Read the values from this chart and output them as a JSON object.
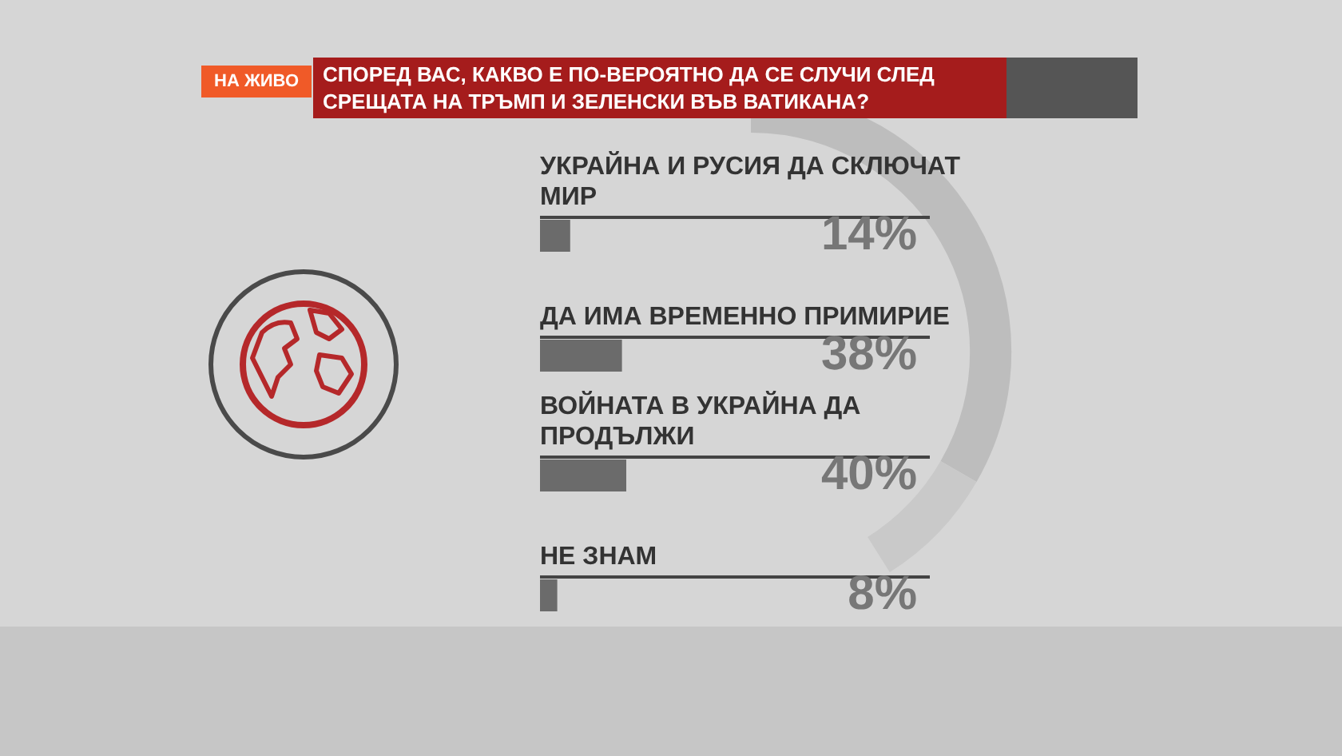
{
  "chart_data": {
    "type": "bar",
    "orientation": "horizontal",
    "title": "СПОРЕД ВАС, КАКВО Е ПО-ВЕРОЯТНО ДА СЕ СЛУЧИ СЛЕД СРЕЩАТА НА ТРЪМП И ЗЕЛЕНСКИ ВЪВ ВАТИКАНА?",
    "annotations": [
      "НА ЖИВО"
    ],
    "categories": [
      "УКРАЙНА И РУСИЯ ДА СКЛЮЧАТ МИР",
      "ДА ИМА ВРЕМЕННО ПРИМИРИЕ",
      "ВОЙНАТА В УКРАЙНА ДА ПРОДЪЛЖИ",
      "НЕ ЗНАМ"
    ],
    "values": [
      14,
      38,
      40,
      8
    ],
    "value_labels": [
      "14%",
      "38%",
      "40%",
      "8%"
    ],
    "color": "#6b6b6b"
  }
}
